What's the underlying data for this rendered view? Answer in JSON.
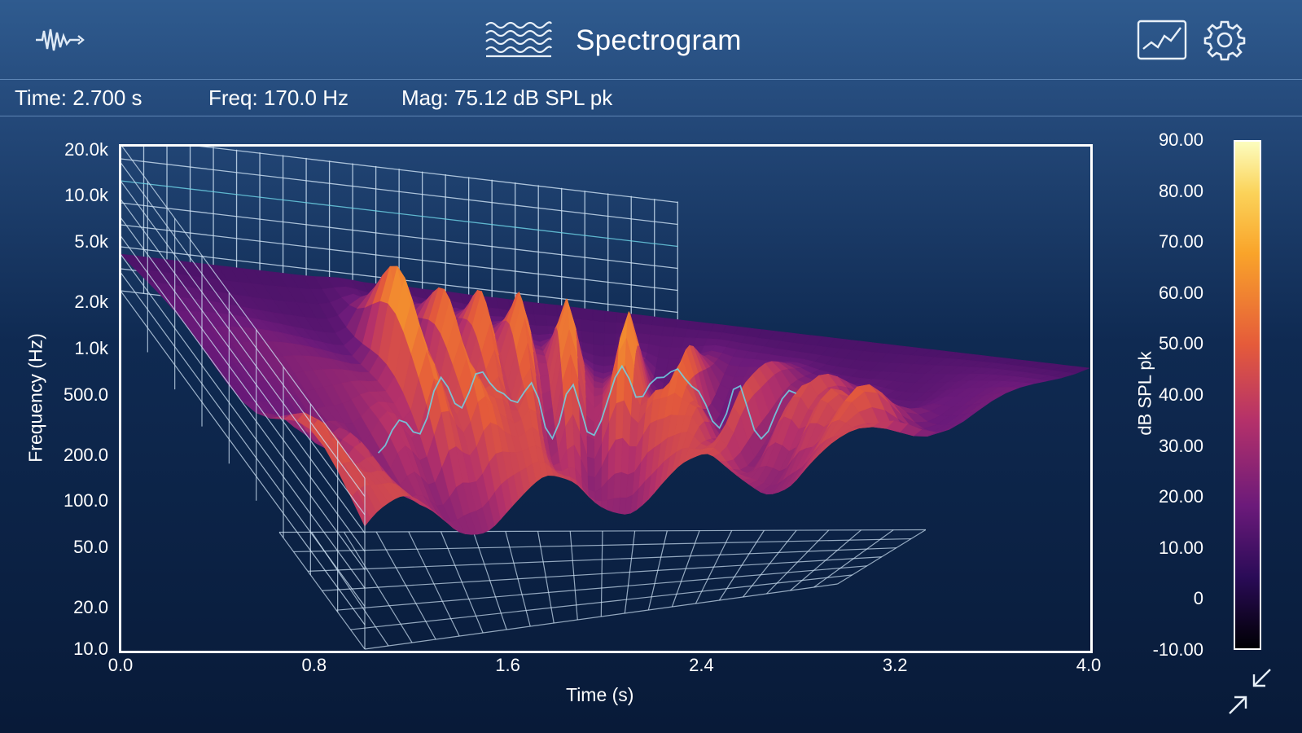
{
  "header": {
    "title": "Spectrogram",
    "left_icon": "waveform-mode-icon",
    "title_icon": "spectrogram-icon",
    "right_icons": [
      "chart-view-icon",
      "gear-icon"
    ]
  },
  "readout": {
    "time": "Time: 2.700 s",
    "freq": "Freq: 170.0 Hz",
    "mag": "Mag: 75.12 dB SPL pk"
  },
  "chart_data": {
    "type": "heatmap",
    "subtype": "3d-surface",
    "xlabel": "Time (s)",
    "ylabel": "Frequency (Hz)",
    "colorbar_label": "dB SPL pk",
    "x_ticks": [
      "0.0",
      "0.8",
      "1.6",
      "2.4",
      "3.2",
      "4.0"
    ],
    "y_ticks": [
      "20.0k",
      "10.0k",
      "5.0k",
      "2.0k",
      "1.0k",
      "500.0",
      "200.0",
      "100.0",
      "50.0",
      "20.0",
      "10.0"
    ],
    "colorbar_ticks": [
      "90.00",
      "80.00",
      "70.00",
      "60.00",
      "50.00",
      "40.00",
      "30.00",
      "20.00",
      "10.00",
      "0",
      "-10.00"
    ],
    "xlim": [
      0,
      4
    ],
    "ylim": [
      10,
      20000
    ],
    "y_scale": "log",
    "zlim": [
      -10,
      90
    ],
    "colormap": "inferno",
    "colors": {
      "frame": "#ffffff",
      "grid": "#cfe3f5",
      "accent_line": "#6fd6e8",
      "cmap_stops": [
        "#000004",
        "#2a0b57",
        "#6b1a7a",
        "#b5316a",
        "#e55b3a",
        "#f9a42a",
        "#fcfdbf"
      ]
    },
    "peaks": [
      {
        "t": 0.9,
        "z": 88
      },
      {
        "t": 1.15,
        "z": 84
      },
      {
        "t": 1.35,
        "z": 84
      },
      {
        "t": 1.55,
        "z": 82
      },
      {
        "t": 1.8,
        "z": 78
      },
      {
        "t": 2.15,
        "z": 76
      },
      {
        "t": 2.5,
        "z": 72
      },
      {
        "t": 2.9,
        "z": 60
      },
      {
        "t": 3.3,
        "z": 52
      },
      {
        "t": 3.7,
        "z": 48
      }
    ]
  },
  "footer": {
    "expand_icon": "expand-arrows-icon"
  }
}
